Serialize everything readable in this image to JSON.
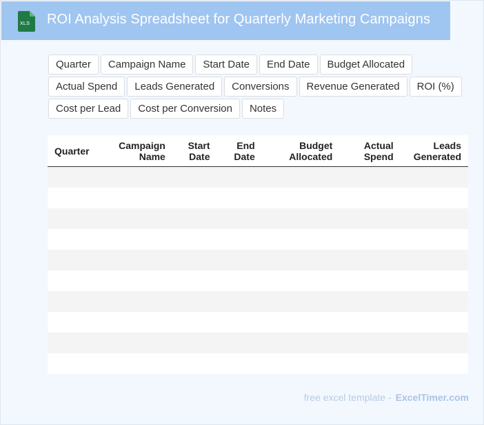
{
  "header": {
    "title": "ROI Analysis Spreadsheet for Quarterly Marketing Campaigns",
    "icon": "xls-file-icon",
    "icon_label": "XLS",
    "colors": {
      "header_bg": "#9fc5f1",
      "icon_green": "#1f7a45"
    }
  },
  "chips": [
    "Quarter",
    "Campaign Name",
    "Start Date",
    "End Date",
    "Budget Allocated",
    "Actual Spend",
    "Leads Generated",
    "Conversions",
    "Revenue Generated",
    "ROI (%)",
    "Cost per Lead",
    "Cost per Conversion",
    "Notes"
  ],
  "table": {
    "columns": [
      [
        "Quarter"
      ],
      [
        "Campaign",
        "Name"
      ],
      [
        "Start",
        "Date"
      ],
      [
        "End",
        "Date"
      ],
      [
        "Budget",
        "Allocated"
      ],
      [
        "Actual",
        "Spend"
      ],
      [
        "Leads",
        "Generated"
      ]
    ],
    "row_count": 10
  },
  "footer": {
    "text": "free excel template -",
    "brand": "ExcelTimer.com"
  }
}
